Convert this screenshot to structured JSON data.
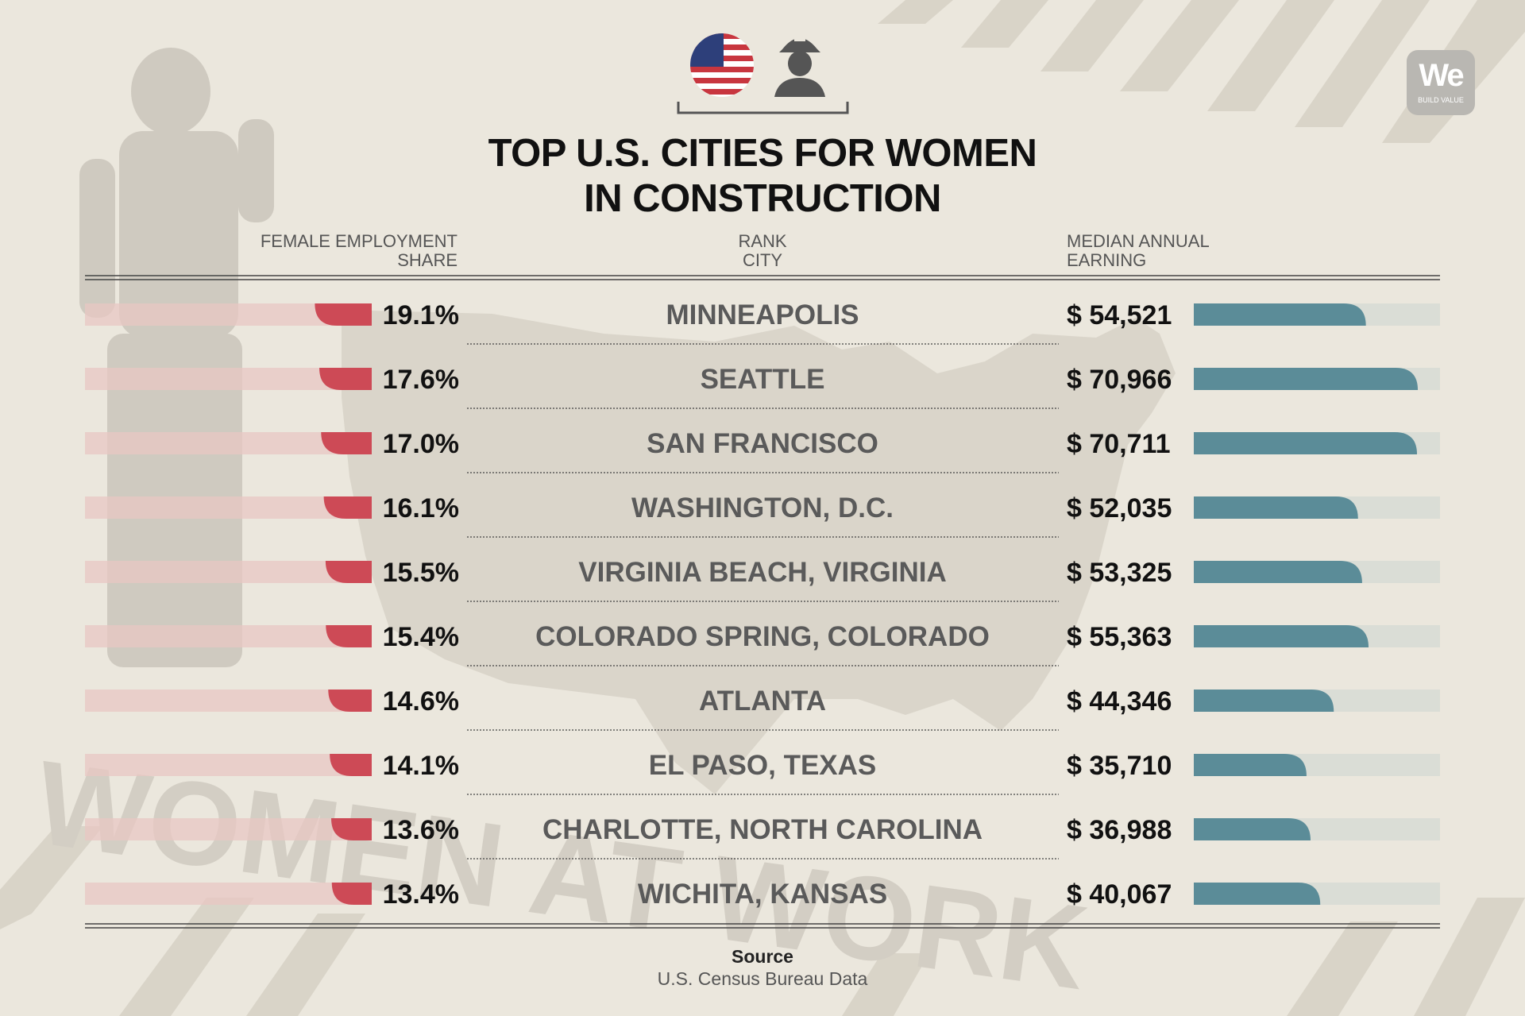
{
  "header": {
    "title_line1": "TOP U.S. CITIES FOR WOMEN",
    "title_line2": "IN CONSTRUCTION"
  },
  "logo": {
    "mark": "We",
    "tagline": "BUILD VALUE"
  },
  "columns": {
    "share_line1": "FEMALE EMPLOYMENT",
    "share_line2": "SHARE",
    "rank_line1": "RANK",
    "rank_line2": "CITY",
    "earn_line1": "MEDIAN ANNUAL",
    "earn_line2": "EARNING"
  },
  "background_text": "WOMEN AT WORK",
  "source": {
    "label": "Source",
    "text": "U.S. Census Bureau Data"
  },
  "colors": {
    "share_bar": "#cd4a56",
    "share_track": "#e8c7c3",
    "earn_bar": "#5b8c98",
    "earn_track": "#d7dbd5",
    "background": "#ebe7dd",
    "city_text": "#5a5a5a"
  },
  "icons": [
    "us-flag-icon",
    "female-worker-icon"
  ],
  "chart_data": {
    "type": "bar",
    "title": "TOP U.S. CITIES FOR WOMEN IN CONSTRUCTION",
    "categories": [
      "MINNEAPOLIS",
      "SEATTLE",
      "SAN FRANCISCO",
      "WASHINGTON, D.C.",
      "VIRGINIA BEACH, VIRGINIA",
      "COLORADO SPRING, COLORADO",
      "ATLANTA",
      "EL PASO, TEXAS",
      "CHARLOTTE, NORTH CAROLINA",
      "WICHITA, KANSAS"
    ],
    "series": [
      {
        "name": "FEMALE EMPLOYMENT SHARE",
        "values": [
          19.1,
          17.6,
          17.0,
          16.1,
          15.5,
          15.4,
          14.6,
          14.1,
          13.6,
          13.4
        ],
        "labels": [
          "19.1%",
          "17.6%",
          "17.0%",
          "16.1%",
          "15.5%",
          "15.4%",
          "14.6%",
          "14.1%",
          "13.6%",
          "13.4%"
        ]
      },
      {
        "name": "MEDIAN ANNUAL EARNING",
        "values": [
          54521,
          70966,
          70711,
          52035,
          53325,
          55363,
          44346,
          35710,
          36988,
          40067
        ],
        "labels": [
          "$ 54,521",
          "$ 70,966",
          "$ 70,711",
          "$ 52,035",
          "$ 53,325",
          "$ 55,363",
          "$ 44,346",
          "$ 35,710",
          "$ 36,988",
          "$ 40,067"
        ]
      }
    ]
  }
}
